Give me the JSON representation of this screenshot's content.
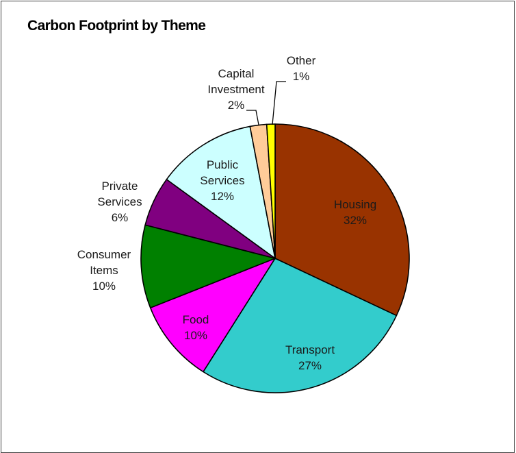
{
  "chart_data": {
    "type": "pie",
    "title": "Carbon Footprint by Theme",
    "legend": "none",
    "data_labels": "category and percent",
    "start_angle": "12 o'clock, clockwise",
    "slices": [
      {
        "label": "Housing",
        "value": 32,
        "pct_label": "32%",
        "color": "#993300"
      },
      {
        "label": "Transport",
        "value": 27,
        "pct_label": "27%",
        "color": "#33CCCC"
      },
      {
        "label": "Food",
        "value": 10,
        "pct_label": "10%",
        "color": "#FF00FF"
      },
      {
        "label": "Consumer Items",
        "value": 10,
        "pct_label": "10%",
        "color": "#008000"
      },
      {
        "label": "Private Services",
        "value": 6,
        "pct_label": "6%",
        "color": "#800080"
      },
      {
        "label": "Public Services",
        "value": 12,
        "pct_label": "12%",
        "color": "#CCFFFF"
      },
      {
        "label": "Capital Investment",
        "value": 2,
        "pct_label": "2%",
        "color": "#FFCC99"
      },
      {
        "label": "Other",
        "value": 1,
        "pct_label": "1%",
        "color": "#FFFF00"
      }
    ]
  }
}
